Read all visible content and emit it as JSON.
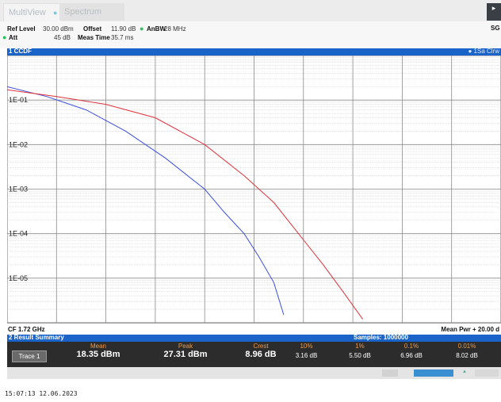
{
  "tabs": {
    "multiview": "MultiView",
    "spectrum": "Spectrum",
    "dot": "●"
  },
  "top_right_button": "SG",
  "settings": {
    "ref_level_label": "Ref Level",
    "ref_level_value": "30.00 dBm",
    "offset_label": "Offset",
    "offset_value": "11.90 dB",
    "anbw_label": "AnBW",
    "anbw_value": "28 MHz",
    "att_label": "Att",
    "att_value": "45 dB",
    "meas_time_label": "Meas Time",
    "meas_time_value": "35.7 ms",
    "bullet": "●"
  },
  "graph": {
    "title": "1 CCDF",
    "legend": "● 1Sa Clrw"
  },
  "under_graph": {
    "cf": "CF 1.72 GHz",
    "mean_pwr": "Mean Pwr + 20.00 d"
  },
  "result_summary": {
    "title": "2 Result Summary",
    "samples": "Samples: 1000000",
    "columns": [
      "Mean",
      "Peak",
      "Crest",
      "10%",
      "1%",
      "0.1%",
      "0.01%"
    ],
    "trace_label": "Trace 1",
    "values": [
      "18.35 dBm",
      "27.31 dBm",
      "8.96 dB",
      "3.16 dB",
      "5.50 dB",
      "6.96 dB",
      "8.02 dB"
    ]
  },
  "timestamp": "15:07:13  12.06.2023",
  "colors": {
    "header_blue": "#1a63c9",
    "trace_blue": "#3b4fe0",
    "trace_red": "#e0313a"
  },
  "chart_data": {
    "type": "line",
    "title": "1 CCDF",
    "y_scale": "log",
    "ylim": [
      1e-06,
      1
    ],
    "y_ticks": [
      "1E-01",
      "1E-02",
      "1E-03",
      "1E-04",
      "1E-05"
    ],
    "xlim": [
      0,
      10
    ],
    "grid": true,
    "series": [
      {
        "color": "#3b4fe0",
        "x": [
          0,
          0.8,
          1.6,
          2.4,
          3.2,
          4.0,
          4.4,
          4.8,
          5.1,
          5.4,
          5.6
        ],
        "y": [
          0.2,
          0.12,
          0.06,
          0.02,
          0.005,
          0.001,
          0.0003,
          0.0001,
          3e-05,
          8e-06,
          1.5e-06
        ]
      },
      {
        "color": "#e0313a",
        "x": [
          0,
          1.0,
          2.0,
          3.0,
          4.0,
          4.8,
          5.4,
          5.9,
          6.4,
          6.8,
          7.2
        ],
        "y": [
          0.17,
          0.12,
          0.08,
          0.04,
          0.01,
          0.002,
          0.0005,
          0.0001,
          2e-05,
          5e-06,
          1.2e-06
        ]
      }
    ]
  }
}
